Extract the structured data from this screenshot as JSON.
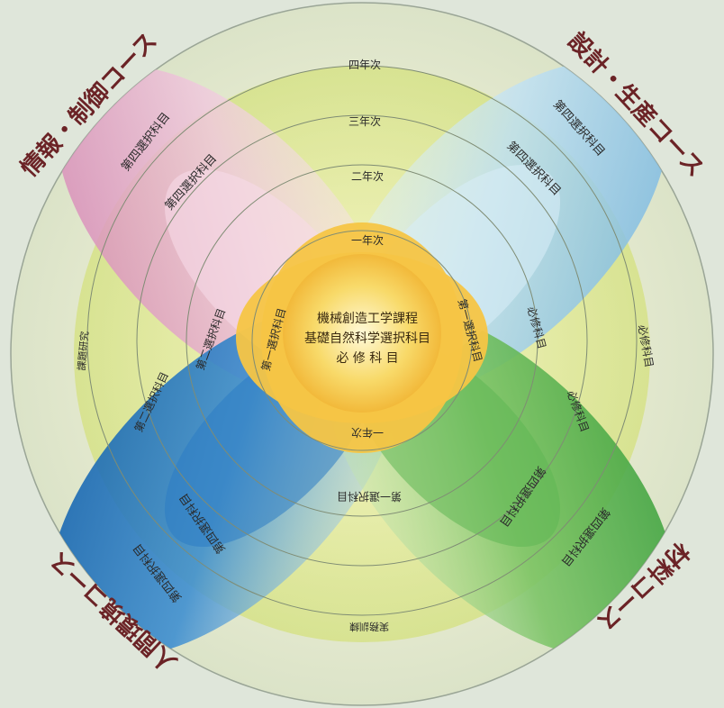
{
  "courses": {
    "top_left": "情報・制御コース",
    "top_right": "設計・生産コース",
    "bottom_left": "人間環境コース",
    "bottom_right": "材料コース"
  },
  "years": {
    "y1": "一年次",
    "y2": "二年次",
    "y3": "三年次",
    "y4": "四年次",
    "y1_bottom": "一年次"
  },
  "center": {
    "line1": "機械創造工学課程",
    "line2": "基礎自然科学選択科目",
    "line3": "必 修 科 目"
  },
  "subjects": {
    "first_elective": "第一選択科目",
    "second_elective": "第二選択科目",
    "fourth_elective": "第四選択科目",
    "required": "必修科目",
    "research": "課題研究",
    "practice": "実務訓練"
  },
  "colors": {
    "pink": "#d98cb5",
    "blue_light": "#79b8e0",
    "blue_dark": "#1466b0",
    "green": "#3ea63f",
    "yellow_green": "#d8e36a",
    "center_yellow": "#f4c040",
    "course_text": "#6b2326"
  }
}
